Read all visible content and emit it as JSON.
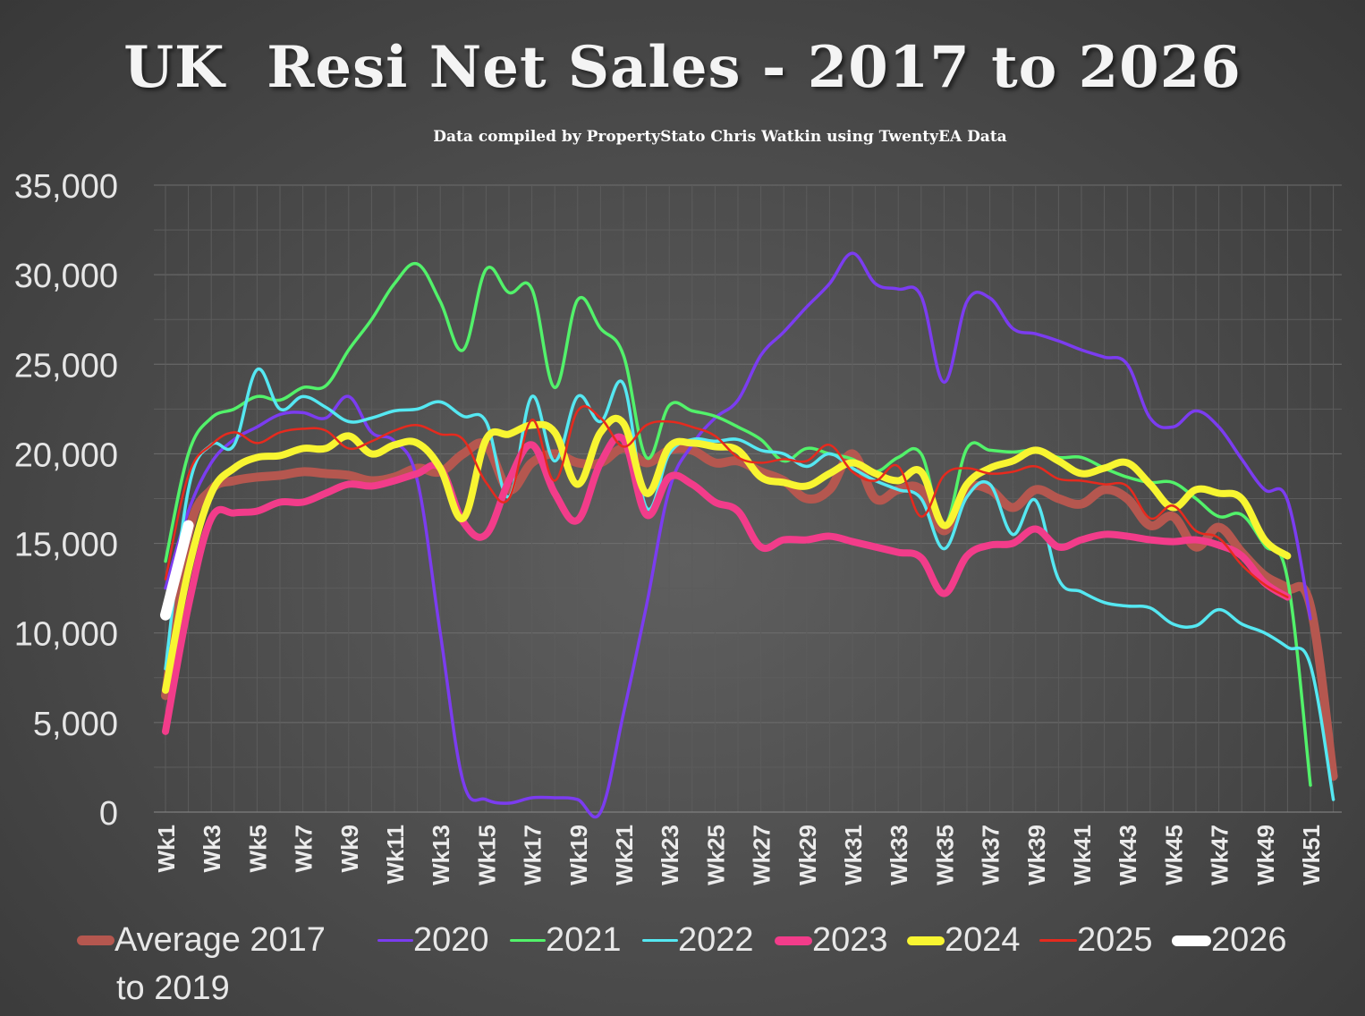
{
  "title": "UK  Resi Net Sales - 2017 to 2026",
  "subtitle": "Data compiled by PropertyStato Chris Watkin using TwentyEA Data",
  "chart_data": {
    "type": "line",
    "title": "UK  Resi Net Sales - 2017 to 2026",
    "subtitle": "Data compiled by PropertyStato Chris Watkin using TwentyEA Data",
    "ylim": [
      0,
      35000
    ],
    "yticks": [
      "0",
      "5,000",
      "10,000",
      "15,000",
      "20,000",
      "25,000",
      "30,000",
      "35,000"
    ],
    "categories": [
      "Wk1",
      "Wk2",
      "Wk3",
      "Wk4",
      "Wk5",
      "Wk6",
      "Wk7",
      "Wk8",
      "Wk9",
      "Wk10",
      "Wk11",
      "Wk12",
      "Wk13",
      "Wk14",
      "Wk15",
      "Wk16",
      "Wk17",
      "Wk18",
      "Wk19",
      "Wk20",
      "Wk21",
      "Wk22",
      "Wk23",
      "Wk24",
      "Wk25",
      "Wk26",
      "Wk27",
      "Wk28",
      "Wk29",
      "Wk30",
      "Wk31",
      "Wk32",
      "Wk33",
      "Wk34",
      "Wk35",
      "Wk36",
      "Wk37",
      "Wk38",
      "Wk39",
      "Wk40",
      "Wk41",
      "Wk42",
      "Wk43",
      "Wk44",
      "Wk45",
      "Wk46",
      "Wk47",
      "Wk48",
      "Wk49",
      "Wk50",
      "Wk51",
      "Wk52"
    ],
    "xtick_labels": [
      "Wk1",
      "Wk3",
      "Wk5",
      "Wk7",
      "Wk9",
      "Wk11",
      "Wk13",
      "Wk15",
      "Wk17",
      "Wk19",
      "Wk21",
      "Wk23",
      "Wk25",
      "Wk27",
      "Wk29",
      "Wk31",
      "Wk33",
      "Wk35",
      "Wk37",
      "Wk39",
      "Wk41",
      "Wk43",
      "Wk45",
      "Wk47",
      "Wk49",
      "Wk51"
    ],
    "grid": true,
    "legend_position": "bottom",
    "series": [
      {
        "name": "Average 2017 to 2019",
        "color": "#b5574f",
        "values": [
          6500,
          15500,
          18000,
          18500,
          18700,
          18800,
          19000,
          18900,
          18800,
          18500,
          18700,
          19200,
          19000,
          20000,
          20500,
          18000,
          19500,
          20000,
          19500,
          19500,
          20300,
          19500,
          20200,
          20200,
          19500,
          19600,
          19000,
          18500,
          17500,
          18000,
          20000,
          17500,
          18000,
          18000,
          15700,
          18000,
          18000,
          17000,
          18000,
          17500,
          17200,
          18000,
          17500,
          16000,
          16500,
          14800,
          15900,
          14500,
          13200,
          12500,
          11500,
          2000
        ]
      },
      {
        "name": "2020",
        "color": "#7b3cf0",
        "values": [
          12500,
          16800,
          19500,
          20800,
          21500,
          22200,
          22300,
          22000,
          23200,
          21200,
          20700,
          18500,
          10000,
          1700,
          700,
          500,
          800,
          800,
          700,
          0,
          5500,
          11500,
          18000,
          20500,
          22000,
          23000,
          25500,
          26800,
          28200,
          29500,
          31200,
          29500,
          29200,
          28800,
          24000,
          28500,
          28700,
          27000,
          26700,
          26300,
          25800,
          25400,
          25000,
          22000,
          21500,
          22400,
          21500,
          19700,
          18000,
          17400,
          10800,
          null
        ]
      },
      {
        "name": "2021",
        "color": "#52f26a",
        "values": [
          14000,
          20000,
          22000,
          22500,
          23200,
          23000,
          23700,
          23800,
          25800,
          27500,
          29500,
          30600,
          28500,
          25800,
          30300,
          29000,
          29200,
          23700,
          28600,
          27000,
          25500,
          19800,
          22700,
          22400,
          22100,
          21500,
          20800,
          19600,
          20300,
          20000,
          19700,
          19000,
          19800,
          20000,
          16000,
          20300,
          20200,
          20100,
          20200,
          19800,
          19800,
          19200,
          18700,
          18400,
          18400,
          17500,
          16500,
          16600,
          14900,
          13000,
          1500,
          null
        ]
      },
      {
        "name": "2022",
        "color": "#55e8f2",
        "values": [
          8000,
          18000,
          20500,
          20500,
          24700,
          22500,
          23200,
          22600,
          21800,
          22000,
          22400,
          22500,
          22900,
          22100,
          21800,
          17600,
          23200,
          19600,
          23200,
          21800,
          23900,
          17000,
          20000,
          20800,
          20700,
          20800,
          20200,
          20000,
          19300,
          20000,
          19200,
          18500,
          18000,
          17500,
          14700,
          17600,
          18300,
          15500,
          17400,
          13000,
          12300,
          11700,
          11500,
          11400,
          10500,
          10400,
          11300,
          10500,
          10000,
          9200,
          8200,
          700
        ]
      },
      {
        "name": "2023",
        "color": "#f23c8a",
        "values": [
          4500,
          11500,
          16400,
          16700,
          16800,
          17300,
          17300,
          17800,
          18300,
          18200,
          18500,
          18900,
          19200,
          16200,
          15500,
          18500,
          20500,
          17800,
          16300,
          19500,
          20800,
          16600,
          18700,
          18300,
          17300,
          16800,
          14800,
          15200,
          15200,
          15400,
          15100,
          14800,
          14500,
          14200,
          12200,
          14300,
          14900,
          15000,
          15800,
          14800,
          15200,
          15500,
          15400,
          15200,
          15100,
          15200,
          14900,
          14300,
          12800,
          12000,
          null,
          null
        ]
      },
      {
        "name": "2024",
        "color": "#f8f531",
        "values": [
          6800,
          13500,
          17800,
          19200,
          19800,
          19900,
          20300,
          20300,
          21000,
          20000,
          20500,
          20600,
          19200,
          16400,
          20800,
          21100,
          21600,
          21200,
          18300,
          21200,
          21700,
          17800,
          20400,
          20600,
          20400,
          20200,
          18700,
          18400,
          18200,
          18900,
          19500,
          18900,
          18500,
          19000,
          16000,
          18300,
          19200,
          19600,
          20200,
          19600,
          18900,
          19200,
          19500,
          18300,
          17000,
          18000,
          17800,
          17500,
          15200,
          14300,
          null,
          null
        ]
      },
      {
        "name": "2025",
        "color": "#e62a1e",
        "values": [
          13000,
          18800,
          20500,
          21200,
          20600,
          21200,
          21400,
          21300,
          20300,
          20700,
          21300,
          21600,
          21100,
          20800,
          18400,
          17500,
          21900,
          18500,
          22400,
          22000,
          20400,
          21600,
          21800,
          21500,
          21000,
          19800,
          19500,
          19700,
          19600,
          20500,
          19000,
          18500,
          19300,
          16500,
          18800,
          19200,
          18900,
          19000,
          19300,
          18600,
          18500,
          18300,
          18200,
          16400,
          17100,
          15700,
          15300,
          13800,
          12700,
          12000,
          null,
          null
        ]
      },
      {
        "name": "2026",
        "color": "#ffffff",
        "values": [
          11000,
          16000,
          null,
          null,
          null,
          null,
          null,
          null,
          null,
          null,
          null,
          null,
          null,
          null,
          null,
          null,
          null,
          null,
          null,
          null,
          null,
          null,
          null,
          null,
          null,
          null,
          null,
          null,
          null,
          null,
          null,
          null,
          null,
          null,
          null,
          null,
          null,
          null,
          null,
          null,
          null,
          null,
          null,
          null,
          null,
          null,
          null,
          null,
          null,
          null,
          null,
          null
        ]
      }
    ]
  },
  "legend": {
    "items": [
      {
        "label": "Average 2017",
        "label_cont": "to 2019",
        "color": "#b5574f"
      },
      {
        "label": "2020",
        "color": "#7b3cf0"
      },
      {
        "label": "2021",
        "color": "#52f26a"
      },
      {
        "label": "2022",
        "color": "#55e8f2"
      },
      {
        "label": "2023",
        "color": "#f23c8a"
      },
      {
        "label": "2024",
        "color": "#f8f531"
      },
      {
        "label": "2025",
        "color": "#e62a1e"
      },
      {
        "label": "2026",
        "color": "#ffffff"
      }
    ]
  }
}
